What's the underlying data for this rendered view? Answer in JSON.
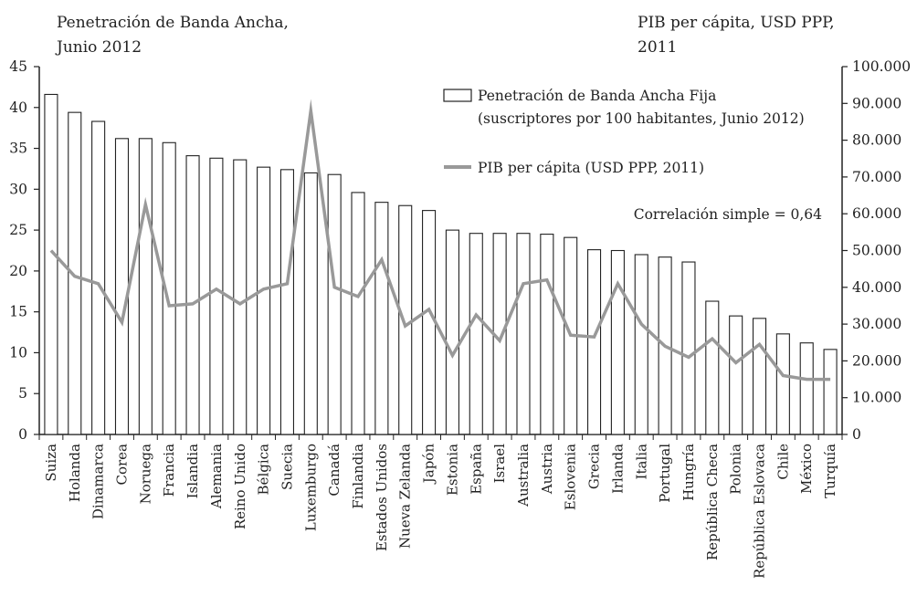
{
  "header": {
    "left_line1": "Penetración de Banda Ancha,",
    "left_line2": "Junio 2012",
    "right_line1": "PIB per cápita, USD PPP,",
    "right_line2": "2011"
  },
  "legend": {
    "bar_line1": "Penetración de Banda Ancha Fija",
    "bar_line2": "(suscriptores por 100 habitantes, Junio 2012)",
    "line_label": "PIB per cápita (USD PPP, 2011)"
  },
  "annotation": "Correlación simple = 0,64",
  "colors": {
    "bar_fill": "#ffffff",
    "bar_stroke": "#222222",
    "line": "#999999",
    "axis": "#222222"
  },
  "chart_data": {
    "type": "bar",
    "categories": [
      "Suiza",
      "Holanda",
      "Dinamarca",
      "Corea",
      "Noruega",
      "Francia",
      "Islandia",
      "Alemania",
      "Reino Unido",
      "Bélgica",
      "Suecia",
      "Luxemburgo",
      "Canadá",
      "Finlandia",
      "Estados Unidos",
      "Nueva Zelanda",
      "Japón",
      "Estonia",
      "España",
      "Israel",
      "Australia",
      "Austria",
      "Eslovenia",
      "Grecia",
      "Irlanda",
      "Italia",
      "Portugal",
      "Hungría",
      "República Checa",
      "Polonia",
      "República Eslovaca",
      "Chile",
      "México",
      "Turquía"
    ],
    "series": [
      {
        "name": "Penetración de Banda Ancha Fija (suscriptores por 100 habitantes, Junio 2012)",
        "type": "bar",
        "axis": "left",
        "values": [
          41.6,
          39.4,
          38.3,
          36.2,
          36.2,
          35.7,
          34.1,
          33.8,
          33.6,
          32.7,
          32.4,
          32.0,
          31.8,
          29.6,
          28.4,
          28.0,
          27.4,
          25.0,
          24.6,
          24.6,
          24.6,
          24.5,
          24.1,
          22.6,
          22.5,
          22.0,
          21.7,
          21.1,
          16.3,
          14.5,
          14.2,
          12.3,
          11.2,
          10.4
        ]
      },
      {
        "name": "PIB per cápita (USD PPP, 2011)",
        "type": "line",
        "axis": "right",
        "values": [
          50000,
          43000,
          41000,
          30500,
          62500,
          35000,
          35500,
          39500,
          35500,
          39500,
          41000,
          88000,
          40000,
          37500,
          47500,
          29500,
          34000,
          21500,
          32500,
          25500,
          41000,
          42000,
          27000,
          26500,
          41000,
          30000,
          24000,
          21000,
          26000,
          19500,
          24500,
          16000,
          15000,
          15000
        ]
      }
    ],
    "left_axis": {
      "min": 0,
      "max": 45,
      "ticks": [
        0,
        5,
        10,
        15,
        20,
        25,
        30,
        35,
        40,
        45
      ],
      "tick_labels": [
        "0",
        "5",
        "10",
        "15",
        "20",
        "25",
        "30",
        "35",
        "40",
        "45"
      ]
    },
    "right_axis": {
      "min": 0,
      "max": 100000,
      "ticks": [
        0,
        10000,
        20000,
        30000,
        40000,
        50000,
        60000,
        70000,
        80000,
        90000,
        100000
      ],
      "tick_labels": [
        "0",
        "10.000",
        "20.000",
        "30.000",
        "40.000",
        "50.000",
        "60.000",
        "70.000",
        "80.000",
        "90.000",
        "100.000"
      ]
    },
    "grid": false,
    "legend_position": "top-right"
  }
}
